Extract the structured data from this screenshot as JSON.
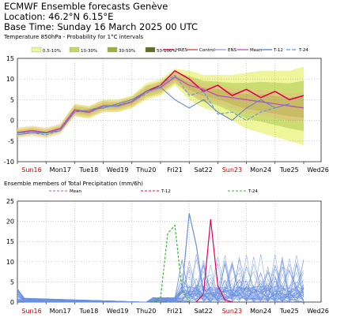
{
  "header": {
    "line1": "ECMWF Ensemble forecasts Genève",
    "line2": "Location:  46.2°N 6.15°E",
    "line3": "Base Time: Sunday 16 March 2025 00 UTC"
  },
  "colors": {
    "hres": "#e0005a",
    "control": "#e04040",
    "ens": "#9a9ad0",
    "mean": "#c050c0",
    "t12": "#5a7fd0",
    "t24": "#6090e0",
    "prob1": "#eef59a",
    "prob2": "#c4d868",
    "prob3": "#a0b040",
    "prob4": "#607020",
    "plume": "#f0b080",
    "sunday": "#cc0000",
    "precip_members": "#6a90e0",
    "precip_green": "#33bb33"
  },
  "chart_data": [
    {
      "type": "line",
      "title": "Temperature 850hPa - Probability for 1°C intervals",
      "prob_legend": [
        "0.5-10%",
        "10-30%",
        "30-50%",
        "50-100%"
      ],
      "series_legend": [
        "HRES",
        "Control",
        "ENS",
        "Mean",
        "T-12",
        "T-24"
      ],
      "x_days": [
        "Sun16",
        "Mon17",
        "Tue18",
        "Wed19",
        "Thu20",
        "Fri21",
        "Sat22",
        "Sun23",
        "Mon24",
        "Tue25",
        "Wed26"
      ],
      "sunday_days": [
        "Sun16",
        "Sun23"
      ],
      "ylim": [
        -10,
        15
      ],
      "yticks": [
        -10,
        -5,
        0,
        5,
        10,
        15
      ],
      "grid": true,
      "x_unit": "days since Sun16 00 UTC",
      "series": [
        {
          "name": "HRES",
          "x": [
            0,
            0.5,
            1,
            1.5,
            2,
            2.5,
            3,
            3.5,
            4,
            4.5,
            5,
            5.5,
            6,
            6.5,
            7,
            7.5,
            8,
            8.5,
            9,
            9.5,
            10
          ],
          "values": [
            -3,
            -2.5,
            -3,
            -2,
            2.5,
            2,
            3.5,
            3.5,
            4.5,
            7,
            8.5,
            12,
            10,
            7,
            8.5,
            6,
            7.5,
            5.5,
            7,
            5,
            6
          ]
        },
        {
          "name": "Mean",
          "x": [
            0,
            0.5,
            1,
            1.5,
            2,
            2.5,
            3,
            3.5,
            4,
            4.5,
            5,
            5.5,
            6,
            6.5,
            7,
            7.5,
            8,
            8.5,
            9,
            9.5,
            10
          ],
          "values": [
            -3,
            -2.5,
            -3,
            -2,
            2.5,
            2,
            3.5,
            3.5,
            4.5,
            7,
            8,
            10.5,
            8.5,
            7.5,
            6,
            5.5,
            5,
            4.5,
            4,
            3.5,
            3
          ]
        },
        {
          "name": "T-12",
          "x": [
            0,
            0.5,
            1,
            1.5,
            2,
            2.5,
            3,
            3.5,
            4,
            4.5,
            5,
            5.5,
            6,
            6.5,
            7,
            7.5,
            8,
            8.5,
            9,
            9.5
          ],
          "values": [
            -3.5,
            -3,
            -3,
            -2.5,
            2,
            2.5,
            3,
            4,
            5,
            7,
            8,
            5,
            3,
            5,
            2,
            0,
            3,
            5,
            3,
            4
          ]
        },
        {
          "name": "T-24",
          "x": [
            0,
            0.5,
            1,
            1.5,
            2,
            2.5,
            3,
            3.5,
            4,
            4.5,
            5,
            5.5,
            6,
            6.5,
            7,
            7.5,
            8,
            8.5,
            9
          ],
          "values": [
            -3,
            -3,
            -3.5,
            -2.5,
            2,
            2.5,
            3.5,
            3.5,
            4.5,
            6.5,
            8.5,
            11,
            6,
            7,
            1.5,
            2,
            0,
            2,
            3
          ]
        }
      ],
      "prob_band_outer_low": [
        -4,
        -3.5,
        -4,
        -3,
        1,
        0.5,
        2,
        2,
        3,
        5,
        6,
        8.5,
        5,
        3,
        2,
        0,
        -2,
        -3,
        -4,
        -5,
        -6
      ],
      "prob_band_outer_high": [
        -2,
        -1.5,
        -2,
        -1,
        4,
        3.5,
        5,
        5,
        6,
        9,
        10,
        12.5,
        12,
        11,
        11,
        11,
        11.5,
        12,
        12,
        12,
        13
      ]
    },
    {
      "type": "line",
      "title": "Ensemble members of Total Precipitation (mm/6h)",
      "series_legend": [
        "Mean",
        "T-12",
        "T-24"
      ],
      "x_days": [
        "Sun16",
        "Mon17",
        "Tue18",
        "Wed19",
        "Thu20",
        "Fri21",
        "Sat22",
        "Sun23",
        "Mon24",
        "Tue25",
        "Wed26"
      ],
      "ylim": [
        0,
        25
      ],
      "yticks": [
        0,
        5,
        10,
        15,
        20,
        25
      ],
      "grid": true,
      "x_unit": "days since Sun16 00 UTC",
      "peaks": [
        {
          "name": "HRES",
          "x": [
            6.25,
            6.5,
            6.75,
            7.0,
            7.25,
            7.5
          ],
          "values": [
            0,
            2,
            20.5,
            4,
            0.5,
            0
          ]
        },
        {
          "name": "T-24",
          "x": [
            4.75,
            5.0,
            5.25,
            5.5,
            5.75,
            6.0
          ],
          "values": [
            0,
            1,
            17,
            19,
            3,
            0
          ]
        },
        {
          "name": "T-12",
          "x": [
            5.5,
            5.75,
            6.0,
            6.25,
            6.5,
            6.75
          ],
          "values": [
            0,
            3,
            22,
            14,
            2,
            0
          ]
        }
      ]
    }
  ]
}
